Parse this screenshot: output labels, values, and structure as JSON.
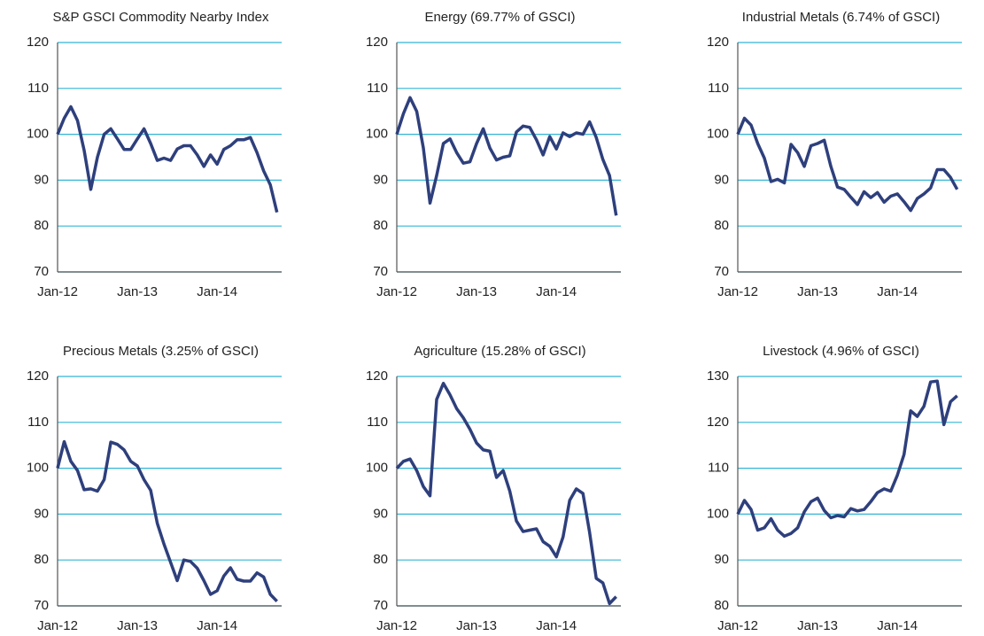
{
  "chart_data": [
    {
      "type": "line",
      "title": "S&P GSCI Commodity Nearby Index",
      "categories": [
        "Jan-12",
        null,
        null,
        null,
        null,
        null,
        null,
        null,
        null,
        null,
        null,
        null,
        "Jan-13",
        null,
        null,
        null,
        null,
        null,
        null,
        null,
        null,
        null,
        null,
        null,
        "Jan-14",
        null,
        null,
        null,
        null,
        null,
        null,
        null,
        null,
        null
      ],
      "values": [
        100,
        103.5,
        106,
        103,
        96.5,
        88,
        95,
        100,
        101.2,
        99,
        96.7,
        96.7,
        99,
        101.2,
        98,
        94.3,
        94.8,
        94.3,
        96.8,
        97.5,
        97.5,
        95.5,
        93,
        95.5,
        93.5,
        96.7,
        97.5,
        98.8,
        98.8,
        99.3,
        96,
        92,
        89,
        83
      ],
      "color": "#2e3f7c",
      "ylim": [
        70,
        120
      ],
      "yticks": [
        70,
        80,
        90,
        100,
        110,
        120
      ],
      "grid": true,
      "grid_color": "#33b5d6"
    },
    {
      "type": "line",
      "title": "Energy (69.77% of GSCI)",
      "categories": [
        "Jan-12",
        null,
        null,
        null,
        null,
        null,
        null,
        null,
        null,
        null,
        null,
        null,
        "Jan-13",
        null,
        null,
        null,
        null,
        null,
        null,
        null,
        null,
        null,
        null,
        null,
        "Jan-14",
        null,
        null,
        null,
        null,
        null,
        null,
        null,
        null,
        null
      ],
      "values": [
        100,
        104.5,
        108,
        105,
        97,
        85,
        91,
        98,
        99,
        96,
        93.7,
        94,
        98,
        101.2,
        97,
        94.4,
        95,
        95.3,
        100.5,
        101.8,
        101.5,
        98.8,
        95.5,
        99.5,
        96.8,
        100.3,
        99.5,
        100.3,
        100,
        102.7,
        99.3,
        94.5,
        91,
        82.3
      ],
      "color": "#2e3f7c",
      "ylim": [
        70,
        120
      ],
      "yticks": [
        70,
        80,
        90,
        100,
        110,
        120
      ],
      "grid": true,
      "grid_color": "#33b5d6"
    },
    {
      "type": "line",
      "title": "Industrial Metals (6.74% of GSCI)",
      "categories": [
        "Jan-12",
        null,
        null,
        null,
        null,
        null,
        null,
        null,
        null,
        null,
        null,
        null,
        "Jan-13",
        null,
        null,
        null,
        null,
        null,
        null,
        null,
        null,
        null,
        null,
        null,
        "Jan-14",
        null,
        null,
        null,
        null,
        null,
        null,
        null,
        null,
        null
      ],
      "values": [
        100,
        103.5,
        102,
        98,
        94.8,
        89.7,
        90.2,
        89.4,
        97.8,
        96,
        93,
        97.5,
        98,
        98.7,
        93,
        88.5,
        88,
        86.3,
        84.7,
        87.5,
        86.2,
        87.3,
        85.2,
        86.5,
        87,
        85.3,
        83.4,
        86,
        87,
        88.3,
        92.3,
        92.3,
        90.6,
        88
      ],
      "color": "#2e3f7c",
      "ylim": [
        70,
        120
      ],
      "yticks": [
        70,
        80,
        90,
        100,
        110,
        120
      ],
      "grid": true,
      "grid_color": "#33b5d6"
    },
    {
      "type": "line",
      "title": "Precious Metals (3.25% of GSCI)",
      "categories": [
        "Jan-12",
        null,
        null,
        null,
        null,
        null,
        null,
        null,
        null,
        null,
        null,
        null,
        "Jan-13",
        null,
        null,
        null,
        null,
        null,
        null,
        null,
        null,
        null,
        null,
        null,
        "Jan-14",
        null,
        null,
        null,
        null,
        null,
        null,
        null,
        null,
        null
      ],
      "values": [
        100,
        105.8,
        101.5,
        99.5,
        95.3,
        95.5,
        95,
        97.5,
        105.7,
        105.2,
        104,
        101.5,
        100.5,
        97.5,
        95.2,
        88,
        83.5,
        79.5,
        75.5,
        80,
        79.7,
        78.2,
        75.5,
        72.5,
        73.3,
        76.5,
        78.3,
        75.8,
        75.4,
        75.4,
        77.2,
        76.3,
        72.5,
        71
      ],
      "color": "#2e3f7c",
      "ylim": [
        70,
        120
      ],
      "yticks": [
        70,
        80,
        90,
        100,
        110,
        120
      ],
      "grid": true,
      "grid_color": "#33b5d6"
    },
    {
      "type": "line",
      "title": "Agriculture (15.28% of GSCI)",
      "categories": [
        "Jan-12",
        null,
        null,
        null,
        null,
        null,
        null,
        null,
        null,
        null,
        null,
        null,
        "Jan-13",
        null,
        null,
        null,
        null,
        null,
        null,
        null,
        null,
        null,
        null,
        null,
        "Jan-14",
        null,
        null,
        null,
        null,
        null,
        null,
        null,
        null,
        null
      ],
      "values": [
        100,
        101.5,
        102,
        99.5,
        96,
        94,
        115,
        118.5,
        116,
        113,
        111,
        108.5,
        105.5,
        104,
        103.7,
        98,
        99.5,
        95,
        88.5,
        86.2,
        86.5,
        86.8,
        84,
        83,
        80.7,
        85,
        93,
        95.5,
        94.5,
        86,
        76,
        75,
        70.5,
        72
      ],
      "color": "#2e3f7c",
      "ylim": [
        70,
        120
      ],
      "yticks": [
        70,
        80,
        90,
        100,
        110,
        120
      ],
      "grid": true,
      "grid_color": "#33b5d6"
    },
    {
      "type": "line",
      "title": "Livestock (4.96% of GSCI)",
      "categories": [
        "Jan-12",
        null,
        null,
        null,
        null,
        null,
        null,
        null,
        null,
        null,
        null,
        null,
        "Jan-13",
        null,
        null,
        null,
        null,
        null,
        null,
        null,
        null,
        null,
        null,
        null,
        "Jan-14",
        null,
        null,
        null,
        null,
        null,
        null,
        null,
        null,
        null
      ],
      "values": [
        100,
        103,
        101,
        96.5,
        97,
        99,
        96.5,
        95.2,
        95.8,
        97,
        100.5,
        102.7,
        103.5,
        100.8,
        99.2,
        99.7,
        99.4,
        101.2,
        100.7,
        101,
        102.7,
        104.7,
        105.5,
        105,
        108.5,
        113,
        122.5,
        121.3,
        123.5,
        128.8,
        129,
        119.5,
        124.5,
        125.8
      ],
      "color": "#2e3f7c",
      "ylim": [
        80,
        130
      ],
      "yticks": [
        80,
        90,
        100,
        110,
        120,
        130
      ],
      "grid": true,
      "grid_color": "#33b5d6"
    }
  ]
}
